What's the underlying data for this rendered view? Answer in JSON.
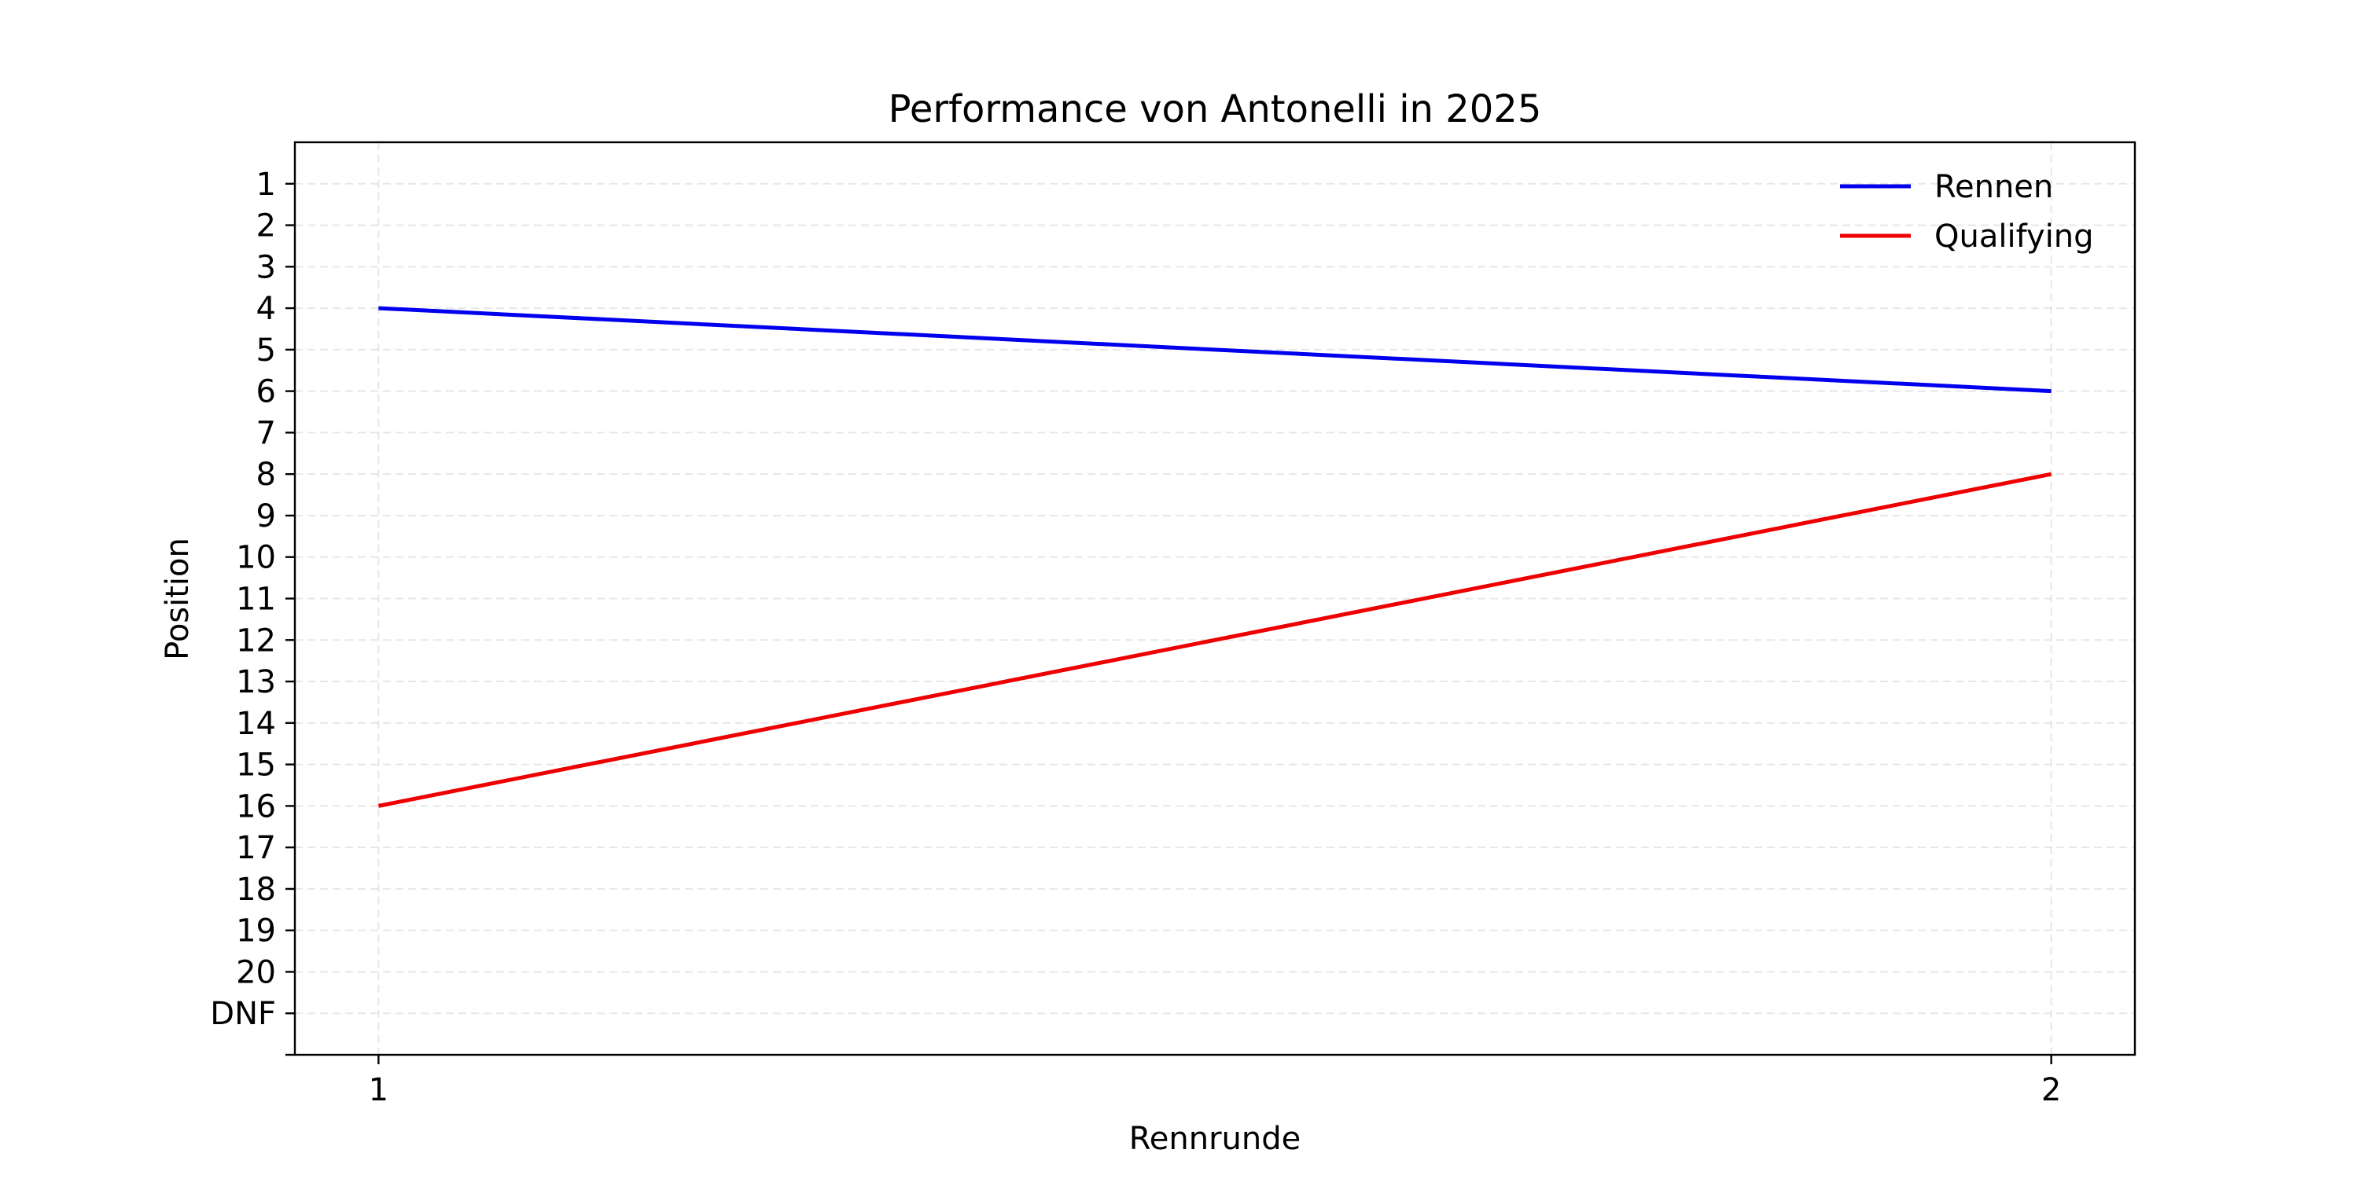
{
  "chart_data": {
    "type": "line",
    "title": "Performance von Antonelli in 2025",
    "xlabel": "Rennrunde",
    "ylabel": "Position",
    "x": [
      1,
      2
    ],
    "x_ticks": [
      "1",
      "2"
    ],
    "xlim": [
      0.95,
      2.05
    ],
    "ylim": [
      22,
      0
    ],
    "y_inverted": true,
    "y_ticks": [
      1,
      2,
      3,
      4,
      5,
      6,
      7,
      8,
      9,
      10,
      11,
      12,
      13,
      14,
      15,
      16,
      17,
      18,
      19,
      20,
      21,
      22
    ],
    "y_tick_labels": [
      "1",
      "2",
      "3",
      "4",
      "5",
      "6",
      "7",
      "8",
      "9",
      "10",
      "11",
      "12",
      "13",
      "14",
      "15",
      "16",
      "17",
      "18",
      "19",
      "20",
      "DNF",
      ""
    ],
    "grid": true,
    "legend_position": "top-right",
    "series": [
      {
        "name": "Rennen",
        "values": [
          4,
          6
        ],
        "color": "#0000ee"
      },
      {
        "name": "Qualifying",
        "values": [
          16,
          8
        ],
        "color": "#ee0000"
      }
    ]
  }
}
